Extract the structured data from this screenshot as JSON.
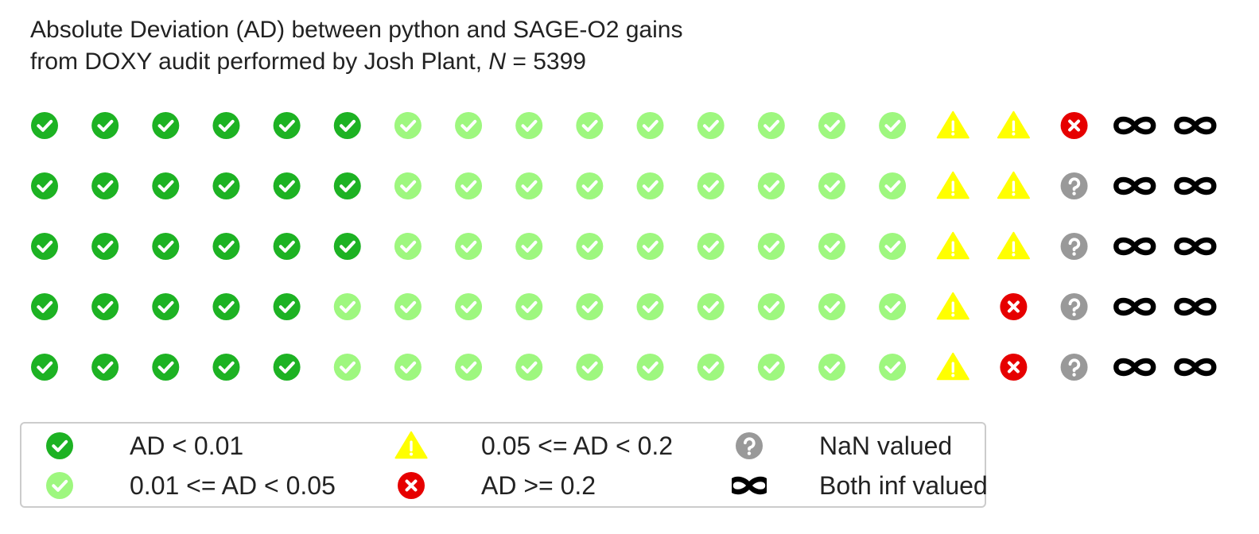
{
  "title": {
    "line1": "Absolute Deviation (AD) between python and SAGE-O2 gains",
    "line2_prefix": "from DOXY audit performed by Josh Plant, ",
    "n_symbol": "N",
    "n_equals": " = ",
    "n_value": "5399"
  },
  "colors": {
    "dark_green": "#1db223",
    "light_green": "#9ef77f",
    "yellow": "#ffff00",
    "red": "#e60000",
    "gray": "#999999",
    "black": "#000000"
  },
  "chart_data": {
    "type": "waffle",
    "n_total": 5399,
    "rows": 5,
    "columns": 20,
    "fill_order": "column-wise, top to bottom, left to right",
    "categories": [
      {
        "key": "lt_001",
        "label": "AD < 0.01",
        "count": 28,
        "icon": "check-circle-icon",
        "color": "#1db223"
      },
      {
        "key": "lt_005",
        "label": "0.01 <= AD < 0.05",
        "count": 47,
        "icon": "check-circle-icon",
        "color": "#9ef77f"
      },
      {
        "key": "lt_02",
        "label": "0.05 <= AD < 0.2",
        "count": 8,
        "icon": "warning-icon",
        "color": "#ffff00"
      },
      {
        "key": "ge_02",
        "label": "AD >= 0.2",
        "count": 3,
        "icon": "x-circle-icon",
        "color": "#e60000"
      },
      {
        "key": "nan",
        "label": "NaN valued",
        "count": 4,
        "icon": "question-circle-icon",
        "color": "#999999"
      },
      {
        "key": "inf",
        "label": "Both inf valued",
        "count": 10,
        "icon": "infinity-icon",
        "color": "#000000"
      }
    ],
    "legend_location": "bottom-left",
    "legend_columns": 3
  }
}
